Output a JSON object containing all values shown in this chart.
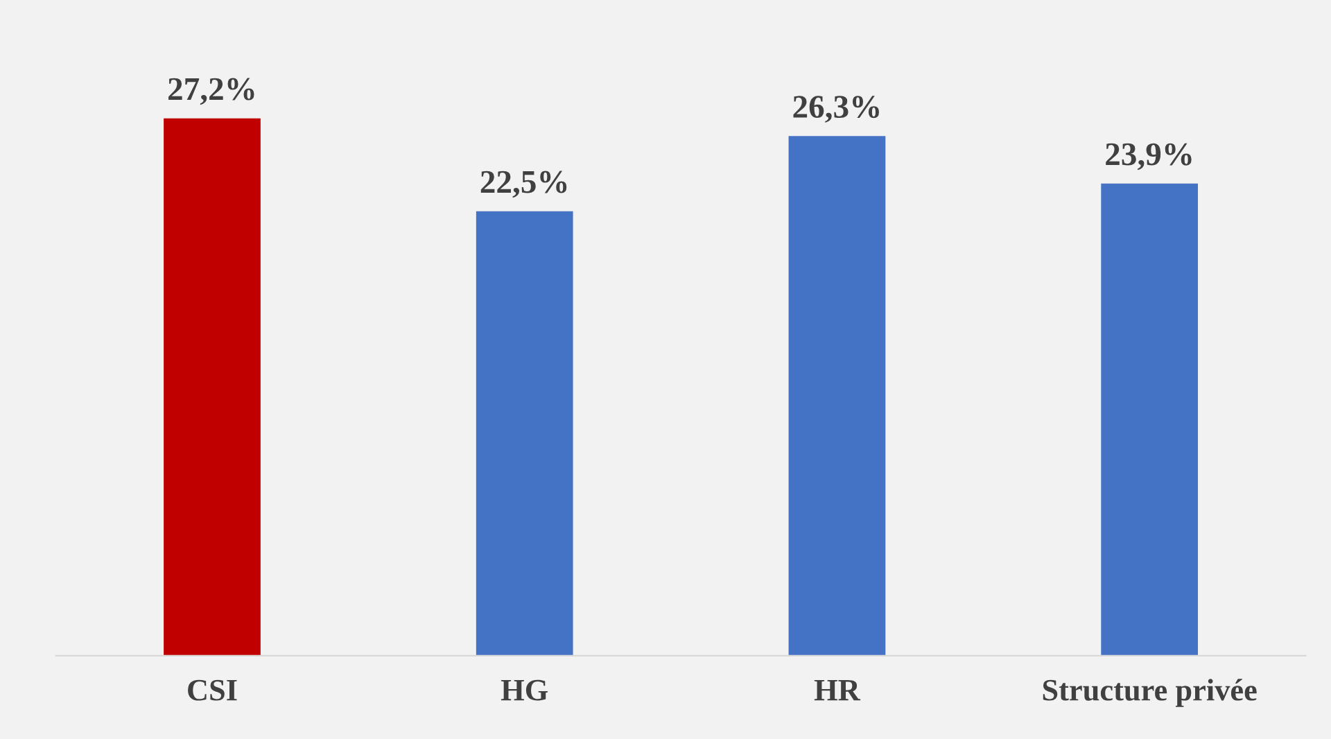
{
  "chart_data": {
    "type": "bar",
    "categories": [
      "CSI",
      "HG",
      "HR",
      "Structure privée"
    ],
    "values": [
      27.2,
      22.5,
      26.3,
      23.9
    ],
    "colors": [
      "#c00000",
      "#4472c4",
      "#4472c4",
      "#4472c4"
    ],
    "value_labels": [
      "27,2%",
      "22,5%",
      "26,3%",
      "23,9%"
    ],
    "grid": false,
    "legend": false
  }
}
